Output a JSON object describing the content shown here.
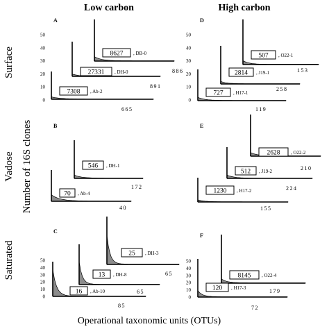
{
  "column_titles": {
    "low": "Low carbon",
    "high": "High carbon"
  },
  "row_labels": {
    "surface": "Surface",
    "vadose": "Vadose",
    "saturated": "Saturated"
  },
  "y_axis_label": "Number of 16S clones",
  "x_axis_label": "Operational taxonomic units (OTUs)",
  "chart_data": [
    {
      "type": "area",
      "panel": "A",
      "show_ticks": true,
      "yticks": [
        "0",
        "10",
        "20",
        "30",
        "40",
        "50"
      ],
      "ylim": [
        0,
        50
      ],
      "series": [
        {
          "name": "DB-0",
          "site_label": ", DB-0",
          "clone_count": "8627",
          "otus": "886",
          "peak": 5,
          "decay": 0.1
        },
        {
          "name": "DH-0",
          "site_label": ", DH-0",
          "clone_count": "27331",
          "otus": "891",
          "peak": 3,
          "decay": 0.12
        },
        {
          "name": "Ab-2",
          "site_label": ", Ab-2",
          "clone_count": "7308",
          "otus": "665",
          "peak": 4,
          "decay": 0.08
        }
      ]
    },
    {
      "type": "area",
      "panel": "D",
      "show_ticks": true,
      "yticks": [
        "0",
        "10",
        "20",
        "30",
        "40",
        "50"
      ],
      "ylim": [
        0,
        50
      ],
      "series": [
        {
          "name": "O22-1",
          "site_label": ", O22-1",
          "clone_count": "507",
          "otus": "153",
          "peak": 4,
          "decay": 0.12
        },
        {
          "name": "J19-1",
          "site_label": ", J19-1",
          "clone_count": "2814",
          "otus": "258",
          "peak": 3,
          "decay": 0.12
        },
        {
          "name": "H17-1",
          "site_label": ", H17-1",
          "clone_count": "727",
          "otus": "119",
          "peak": 5,
          "decay": 0.1
        }
      ]
    },
    {
      "type": "area",
      "panel": "B",
      "show_ticks": false,
      "yticks": [
        "0",
        "10",
        "20",
        "30",
        "40",
        "50"
      ],
      "ylim": [
        0,
        50
      ],
      "series": [
        {
          "name": "DH-1",
          "site_label": ", DH-1",
          "clone_count": "546",
          "otus": "172",
          "peak": 4,
          "decay": 0.1
        },
        {
          "name": "Ab-4",
          "site_label": ", Ab-4",
          "clone_count": "70",
          "otus": "40",
          "peak": 10,
          "decay": 0.08
        }
      ]
    },
    {
      "type": "area",
      "panel": "E",
      "show_ticks": false,
      "yticks": [
        "0",
        "10",
        "20",
        "30",
        "40",
        "50"
      ],
      "ylim": [
        0,
        50
      ],
      "series": [
        {
          "name": "O22-2",
          "site_label": ", O22-2",
          "clone_count": "2628",
          "otus": "210",
          "peak": 4,
          "decay": 0.1
        },
        {
          "name": "J19-2",
          "site_label": ", J19-2",
          "clone_count": "512",
          "otus": "224",
          "peak": 5,
          "decay": 0.1
        },
        {
          "name": "H17-2",
          "site_label": ", H17-2",
          "clone_count": "1230",
          "otus": "155",
          "peak": 4,
          "decay": 0.1
        }
      ]
    },
    {
      "type": "area",
      "panel": "C",
      "show_ticks": true,
      "yticks": [
        "0",
        "10",
        "20",
        "30",
        "40",
        "50"
      ],
      "ylim": [
        0,
        50
      ],
      "series": [
        {
          "name": "DH-3",
          "site_label": ", DH-3",
          "clone_count": "25",
          "otus": "65",
          "peak": 30,
          "decay": 0.22
        },
        {
          "name": "DH-8",
          "site_label": ", DH-8",
          "clone_count": "13",
          "otus": "65",
          "peak": 28,
          "decay": 0.22
        },
        {
          "name": "Ab-10",
          "site_label": ", Ab-10",
          "clone_count": "16",
          "otus": "85",
          "peak": 38,
          "decay": 0.18
        }
      ]
    },
    {
      "type": "area",
      "panel": "F",
      "show_ticks": true,
      "yticks": [
        "0",
        "10",
        "20",
        "30",
        "40",
        "50"
      ],
      "ylim": [
        0,
        50
      ],
      "series": [
        {
          "name": "O22-4",
          "site_label": ", O22-4",
          "clone_count": "8145",
          "otus": "179",
          "peak": 4,
          "decay": 0.12
        },
        {
          "name": "H17-3",
          "site_label": ", H17-3",
          "clone_count": "120",
          "otus": "72",
          "peak": 8,
          "decay": 0.15
        }
      ]
    }
  ]
}
